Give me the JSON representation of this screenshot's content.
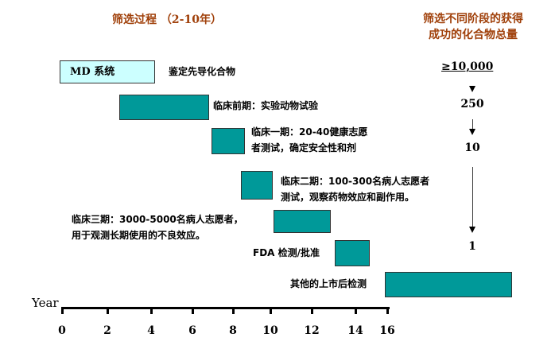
{
  "title_left": "筛选过程 （2-10年）",
  "title_right": [
    "筛选不同阶段的获得",
    "成功的化合物总量"
  ],
  "stages": [
    {
      "box_label": "MD 系统",
      "label": "鉴定先导化合物",
      "start": 0,
      "end": 4.5
    },
    {
      "label": "临床前期：实验动物试验",
      "start": 2.7,
      "end": 7
    },
    {
      "label": [
        "临床一期：20-40健康志愿",
        "者测试，确定安全性和剂"
      ],
      "start": 7,
      "end": 8.6
    },
    {
      "label": [
        "临床二期：100-300名病人志愿者",
        "测试，观察药物效应和副作用。"
      ],
      "start": 8.6,
      "end": 10.1
    },
    {
      "label": [
        "临床三期：3000-5000名病人志愿者，",
        "用于观测长期使用的不良效应。"
      ],
      "start": 10.1,
      "end": 13
    },
    {
      "label": "FDA 检测/批准",
      "start": 13.2,
      "end": 14.9
    },
    {
      "label": "其他的上市后检测",
      "start": 16,
      "end": 22
    }
  ],
  "counts": [
    "≥10,000",
    "250",
    "10",
    "1"
  ],
  "axis": {
    "label": "Year",
    "ticks": [
      "0",
      "2",
      "4",
      "6",
      "8",
      "10",
      "12",
      "14",
      "16"
    ]
  },
  "colors": {
    "bar": "#009999",
    "md_box": "#ccffff",
    "title": "#a0400a"
  }
}
